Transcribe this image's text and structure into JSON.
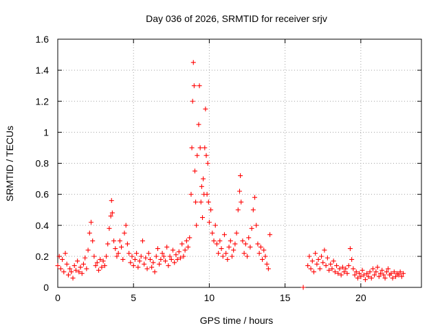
{
  "chart_data": {
    "type": "scatter",
    "title": "Day 036 of 2026, SRMTID for receiver srjv",
    "xlabel": "GPS time / hours",
    "ylabel": "SRMTID / TECUs",
    "xlim": [
      0,
      24
    ],
    "ylim": [
      0,
      1.6
    ],
    "xticks": [
      0,
      5,
      10,
      15,
      20
    ],
    "xtick_labels": [
      "0",
      "5",
      "10",
      "15",
      "20"
    ],
    "yticks": [
      0,
      0.2,
      0.4,
      0.6,
      0.8,
      1.0,
      1.2,
      1.4,
      1.6
    ],
    "ytick_labels": [
      "0",
      "0.2",
      "0.4",
      "0.6",
      "0.8",
      "1",
      "1.2",
      "1.4",
      "1.6"
    ],
    "grid": true,
    "marker": "plus",
    "color": "#ff0000",
    "series": [
      {
        "name": "SRMTID",
        "points": [
          [
            0.0,
            0.14
          ],
          [
            0.1,
            0.2
          ],
          [
            0.2,
            0.12
          ],
          [
            0.3,
            0.18
          ],
          [
            0.4,
            0.1
          ],
          [
            0.5,
            0.22
          ],
          [
            0.6,
            0.15
          ],
          [
            0.7,
            0.08
          ],
          [
            0.8,
            0.12
          ],
          [
            0.9,
            0.1
          ],
          [
            1.0,
            0.06
          ],
          [
            1.1,
            0.14
          ],
          [
            1.2,
            0.11
          ],
          [
            1.3,
            0.17
          ],
          [
            1.4,
            0.1
          ],
          [
            1.5,
            0.13
          ],
          [
            1.6,
            0.09
          ],
          [
            1.7,
            0.15
          ],
          [
            1.8,
            0.19
          ],
          [
            1.9,
            0.12
          ],
          [
            2.0,
            0.24
          ],
          [
            2.1,
            0.35
          ],
          [
            2.2,
            0.42
          ],
          [
            2.3,
            0.3
          ],
          [
            2.4,
            0.2
          ],
          [
            2.5,
            0.14
          ],
          [
            2.6,
            0.16
          ],
          [
            2.7,
            0.11
          ],
          [
            2.8,
            0.18
          ],
          [
            2.9,
            0.13
          ],
          [
            3.0,
            0.17
          ],
          [
            3.1,
            0.14
          ],
          [
            3.2,
            0.2
          ],
          [
            3.3,
            0.28
          ],
          [
            3.4,
            0.38
          ],
          [
            3.5,
            0.46
          ],
          [
            3.55,
            0.56
          ],
          [
            3.6,
            0.48
          ],
          [
            3.7,
            0.3
          ],
          [
            3.8,
            0.25
          ],
          [
            3.9,
            0.2
          ],
          [
            4.0,
            0.22
          ],
          [
            4.1,
            0.3
          ],
          [
            4.2,
            0.26
          ],
          [
            4.3,
            0.18
          ],
          [
            4.4,
            0.35
          ],
          [
            4.5,
            0.4
          ],
          [
            4.6,
            0.28
          ],
          [
            4.7,
            0.22
          ],
          [
            4.8,
            0.16
          ],
          [
            4.9,
            0.2
          ],
          [
            5.0,
            0.14
          ],
          [
            5.1,
            0.18
          ],
          [
            5.2,
            0.22
          ],
          [
            5.3,
            0.13
          ],
          [
            5.4,
            0.17
          ],
          [
            5.5,
            0.2
          ],
          [
            5.6,
            0.3
          ],
          [
            5.7,
            0.15
          ],
          [
            5.8,
            0.19
          ],
          [
            5.9,
            0.12
          ],
          [
            6.0,
            0.22
          ],
          [
            6.1,
            0.18
          ],
          [
            6.2,
            0.13
          ],
          [
            6.3,
            0.16
          ],
          [
            6.4,
            0.1
          ],
          [
            6.5,
            0.2
          ],
          [
            6.6,
            0.25
          ],
          [
            6.7,
            0.15
          ],
          [
            6.8,
            0.18
          ],
          [
            6.9,
            0.22
          ],
          [
            7.0,
            0.2
          ],
          [
            7.1,
            0.17
          ],
          [
            7.2,
            0.26
          ],
          [
            7.3,
            0.14
          ],
          [
            7.4,
            0.2
          ],
          [
            7.5,
            0.18
          ],
          [
            7.6,
            0.24
          ],
          [
            7.7,
            0.16
          ],
          [
            7.8,
            0.21
          ],
          [
            7.9,
            0.18
          ],
          [
            8.0,
            0.23
          ],
          [
            8.1,
            0.19
          ],
          [
            8.2,
            0.28
          ],
          [
            8.3,
            0.2
          ],
          [
            8.4,
            0.24
          ],
          [
            8.5,
            0.3
          ],
          [
            8.6,
            0.26
          ],
          [
            8.7,
            0.32
          ],
          [
            8.8,
            0.6
          ],
          [
            8.85,
            0.9
          ],
          [
            8.9,
            1.2
          ],
          [
            8.95,
            1.45
          ],
          [
            9.0,
            1.3
          ],
          [
            9.05,
            0.75
          ],
          [
            9.1,
            0.55
          ],
          [
            9.15,
            0.4
          ],
          [
            9.2,
            0.85
          ],
          [
            9.3,
            1.05
          ],
          [
            9.35,
            1.3
          ],
          [
            9.4,
            0.9
          ],
          [
            9.45,
            0.55
          ],
          [
            9.5,
            0.65
          ],
          [
            9.55,
            0.45
          ],
          [
            9.6,
            0.7
          ],
          [
            9.65,
            0.6
          ],
          [
            9.7,
            0.9
          ],
          [
            9.75,
            1.15
          ],
          [
            9.8,
            0.85
          ],
          [
            9.85,
            0.6
          ],
          [
            9.9,
            0.8
          ],
          [
            9.95,
            0.55
          ],
          [
            10.0,
            0.42
          ],
          [
            10.1,
            0.5
          ],
          [
            10.2,
            0.35
          ],
          [
            10.3,
            0.3
          ],
          [
            10.4,
            0.4
          ],
          [
            10.5,
            0.28
          ],
          [
            10.6,
            0.22
          ],
          [
            10.7,
            0.3
          ],
          [
            10.8,
            0.25
          ],
          [
            10.9,
            0.2
          ],
          [
            11.0,
            0.34
          ],
          [
            11.1,
            0.22
          ],
          [
            11.2,
            0.18
          ],
          [
            11.3,
            0.26
          ],
          [
            11.4,
            0.3
          ],
          [
            11.5,
            0.2
          ],
          [
            11.6,
            0.24
          ],
          [
            11.7,
            0.28
          ],
          [
            11.8,
            0.35
          ],
          [
            11.9,
            0.5
          ],
          [
            12.0,
            0.62
          ],
          [
            12.05,
            0.72
          ],
          [
            12.1,
            0.55
          ],
          [
            12.2,
            0.3
          ],
          [
            12.3,
            0.22
          ],
          [
            12.4,
            0.28
          ],
          [
            12.5,
            0.2
          ],
          [
            12.6,
            0.32
          ],
          [
            12.7,
            0.26
          ],
          [
            12.8,
            0.38
          ],
          [
            12.9,
            0.5
          ],
          [
            13.0,
            0.58
          ],
          [
            13.1,
            0.4
          ],
          [
            13.2,
            0.28
          ],
          [
            13.3,
            0.22
          ],
          [
            13.4,
            0.26
          ],
          [
            13.5,
            0.18
          ],
          [
            13.6,
            0.24
          ],
          [
            13.7,
            0.2
          ],
          [
            13.8,
            0.15
          ],
          [
            13.9,
            0.12
          ],
          [
            14.0,
            0.34
          ],
          [
            16.2,
            0.0
          ],
          [
            16.5,
            0.14
          ],
          [
            16.6,
            0.2
          ],
          [
            16.7,
            0.12
          ],
          [
            16.8,
            0.17
          ],
          [
            16.9,
            0.1
          ],
          [
            17.0,
            0.22
          ],
          [
            17.1,
            0.15
          ],
          [
            17.2,
            0.18
          ],
          [
            17.3,
            0.12
          ],
          [
            17.4,
            0.2
          ],
          [
            17.5,
            0.16
          ],
          [
            17.6,
            0.24
          ],
          [
            17.7,
            0.14
          ],
          [
            17.8,
            0.19
          ],
          [
            17.9,
            0.11
          ],
          [
            18.0,
            0.15
          ],
          [
            18.1,
            0.12
          ],
          [
            18.2,
            0.17
          ],
          [
            18.3,
            0.1
          ],
          [
            18.4,
            0.14
          ],
          [
            18.5,
            0.09
          ],
          [
            18.6,
            0.12
          ],
          [
            18.7,
            0.08
          ],
          [
            18.8,
            0.13
          ],
          [
            18.9,
            0.1
          ],
          [
            19.0,
            0.12
          ],
          [
            19.1,
            0.09
          ],
          [
            19.2,
            0.14
          ],
          [
            19.3,
            0.25
          ],
          [
            19.4,
            0.18
          ],
          [
            19.5,
            0.12
          ],
          [
            19.6,
            0.08
          ],
          [
            19.7,
            0.1
          ],
          [
            19.8,
            0.06
          ],
          [
            19.9,
            0.09
          ],
          [
            20.0,
            0.07
          ],
          [
            20.1,
            0.11
          ],
          [
            20.2,
            0.08
          ],
          [
            20.3,
            0.05
          ],
          [
            20.4,
            0.09
          ],
          [
            20.5,
            0.07
          ],
          [
            20.6,
            0.1
          ],
          [
            20.7,
            0.06
          ],
          [
            20.8,
            0.12
          ],
          [
            20.9,
            0.08
          ],
          [
            21.0,
            0.1
          ],
          [
            21.1,
            0.13
          ],
          [
            21.2,
            0.07
          ],
          [
            21.3,
            0.09
          ],
          [
            21.4,
            0.11
          ],
          [
            21.5,
            0.08
          ],
          [
            21.6,
            0.06
          ],
          [
            21.7,
            0.1
          ],
          [
            21.8,
            0.12
          ],
          [
            21.9,
            0.08
          ],
          [
            22.0,
            0.09
          ],
          [
            22.1,
            0.06
          ],
          [
            22.2,
            0.1
          ],
          [
            22.3,
            0.07
          ],
          [
            22.4,
            0.09
          ],
          [
            22.5,
            0.08
          ],
          [
            22.6,
            0.1
          ],
          [
            22.7,
            0.07
          ],
          [
            22.8,
            0.09
          ]
        ]
      }
    ]
  }
}
